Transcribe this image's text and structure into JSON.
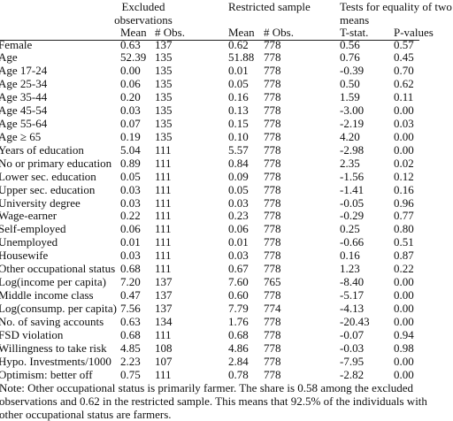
{
  "header": {
    "excluded": "Excluded observations",
    "restricted": "Restricted sample",
    "tests": "Tests for equality of two means",
    "columns": [
      "Mean",
      "# Obs.",
      "Mean",
      "# Obs.",
      "T-stat.",
      "P-values"
    ]
  },
  "table": {
    "rows": [
      [
        "Female",
        "0.63",
        "137",
        "0.62",
        "778",
        "0.56",
        "0.57"
      ],
      [
        "Age",
        "52.39",
        "135",
        "51.88",
        "778",
        "0.76",
        "0.45"
      ],
      [
        "Age 17-24",
        "0.00",
        "135",
        "0.01",
        "778",
        "-0.39",
        "0.70"
      ],
      [
        "Age 25-34",
        "0.06",
        "135",
        "0.05",
        "778",
        "0.50",
        "0.62"
      ],
      [
        "Age 35-44",
        "0.20",
        "135",
        "0.16",
        "778",
        "1.59",
        "0.11"
      ],
      [
        "Age 45-54",
        "0.03",
        "135",
        "0.13",
        "778",
        "-3.00",
        "0.00"
      ],
      [
        "Age 55-64",
        "0.07",
        "135",
        "0.15",
        "778",
        "-2.19",
        "0.03"
      ],
      [
        "Age ≥ 65",
        "0.19",
        "135",
        "0.10",
        "778",
        "4.20",
        "0.00"
      ],
      [
        "Years of education",
        "5.04",
        "111",
        "5.57",
        "778",
        "-2.98",
        "0.00"
      ],
      [
        "No or primary education",
        "0.89",
        "111",
        "0.84",
        "778",
        "2.35",
        "0.02"
      ],
      [
        "Lower sec. education",
        "0.05",
        "111",
        "0.09",
        "778",
        "-1.56",
        "0.12"
      ],
      [
        "Upper sec. education",
        "0.03",
        "111",
        "0.05",
        "778",
        "-1.41",
        "0.16"
      ],
      [
        "University degree",
        "0.03",
        "111",
        "0.03",
        "778",
        "-0.05",
        "0.96"
      ],
      [
        "Wage-earner",
        "0.22",
        "111",
        "0.23",
        "778",
        "-0.29",
        "0.77"
      ],
      [
        "Self-employed",
        "0.06",
        "111",
        "0.06",
        "778",
        "0.25",
        "0.80"
      ],
      [
        "Unemployed",
        "0.01",
        "111",
        "0.01",
        "778",
        "-0.66",
        "0.51"
      ],
      [
        "Housewife",
        "0.03",
        "111",
        "0.03",
        "778",
        "0.16",
        "0.87"
      ],
      [
        "Other occupational status",
        "0.68",
        "111",
        "0.67",
        "778",
        "1.23",
        "0.22"
      ],
      [
        "Log(income per capita)",
        "7.20",
        "137",
        "7.60",
        "765",
        "-8.40",
        "0.00"
      ],
      [
        "Middle income class",
        "0.47",
        "137",
        "0.60",
        "778",
        "-5.17",
        "0.00"
      ],
      [
        "Log(consump. per capita)",
        "7.56",
        "137",
        "7.79",
        "774",
        "-4.13",
        "0.00"
      ],
      [
        "No. of saving accounts",
        "0.63",
        "134",
        "1.76",
        "778",
        "-20.43",
        "0.00"
      ],
      [
        "FSD violation",
        "0.68",
        "111",
        "0.68",
        "778",
        "-0.07",
        "0.94"
      ],
      [
        "Willingness to take risk",
        "4.85",
        "108",
        "4.86",
        "778",
        "-0.03",
        "0.98"
      ],
      [
        "Hypo. Investments/1000",
        "2.23",
        "107",
        "2.84",
        "778",
        "-7.95",
        "0.00"
      ],
      [
        "Optimism: better off",
        "0.75",
        "111",
        "0.78",
        "778",
        "-2.82",
        "0.00"
      ]
    ]
  },
  "note": "Note: Other occupational status is primarily farmer. The share is 0.58 among the excluded observations and 0.62 in the restricted sample. This means that 92.5% of the individuals with other occupational status are farmers."
}
